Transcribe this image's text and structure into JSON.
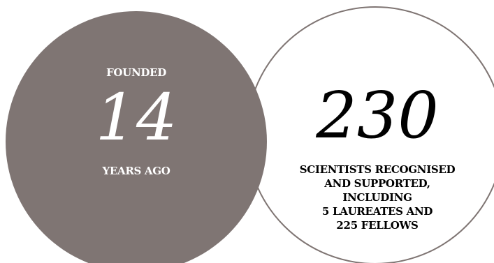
{
  "left_stat": {
    "label_top": "FOUNDED",
    "number": "14",
    "label_bottom": "YEARS AGO"
  },
  "right_stat": {
    "number": "230",
    "description_lines": [
      "SCIENTISTS RECOGNISED",
      "AND SUPPORTED,",
      "INCLUDING",
      "5 LAUREATES AND",
      "225 FELLOWS"
    ]
  },
  "colors": {
    "circle_fill": "#7f7573",
    "circle_outline": "#7f7573",
    "text_light": "#ffffff",
    "text_dark": "#000000"
  }
}
